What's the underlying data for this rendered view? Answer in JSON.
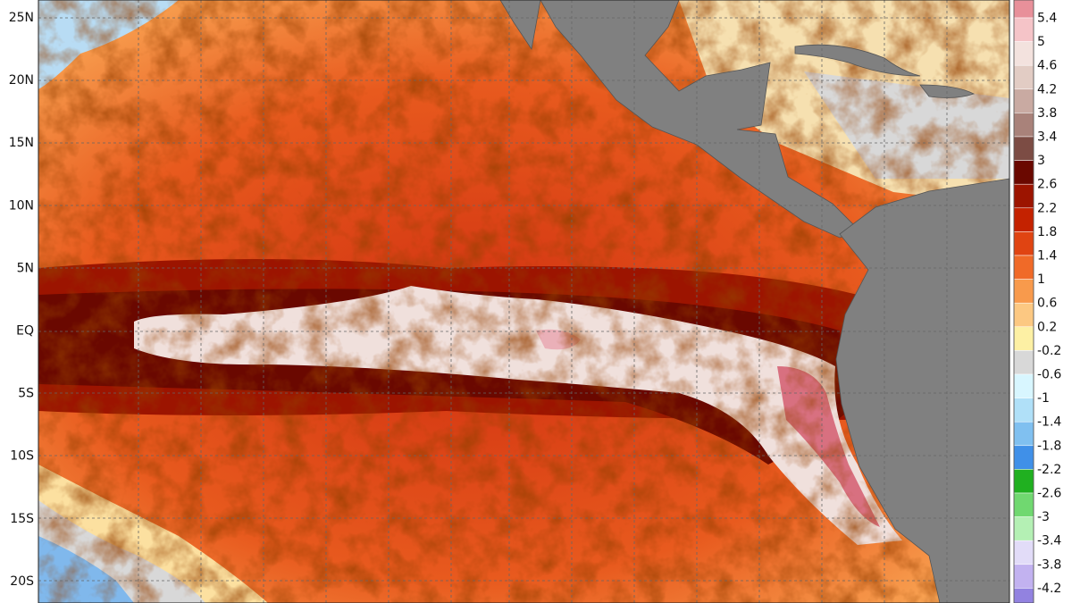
{
  "map": {
    "lat_labels": [
      "25N",
      "20N",
      "15N",
      "10N",
      "5N",
      "EQ",
      "5S",
      "10S",
      "15S",
      "20S"
    ],
    "colorbar": {
      "ticks": [
        5.4,
        5,
        4.6,
        4.2,
        3.8,
        3.4,
        3,
        2.6,
        2.2,
        1.8,
        1.4,
        1,
        0.6,
        0.2,
        -0.2,
        -0.6,
        -1,
        -1.4,
        -1.8,
        -2.2,
        -2.6,
        -3,
        -3.4,
        -3.8,
        -4.2
      ],
      "colors": [
        "#e8909a",
        "#f5c4c8",
        "#f3e2de",
        "#e2ccc4",
        "#c9aaa2",
        "#a9827a",
        "#7c4c44",
        "#6a0800",
        "#9c1400",
        "#c42200",
        "#e04412",
        "#f06a28",
        "#f89a4c",
        "#fcc882",
        "#fdf0a4",
        "#d8d8d8",
        "#d8f6ff",
        "#b0e0f8",
        "#80c0f0",
        "#4090e8",
        "#20b020",
        "#70d870",
        "#b4f0b4",
        "#e2dcf8",
        "#c2b2f0",
        "#9282e0",
        "#4030c0"
      ]
    }
  }
}
